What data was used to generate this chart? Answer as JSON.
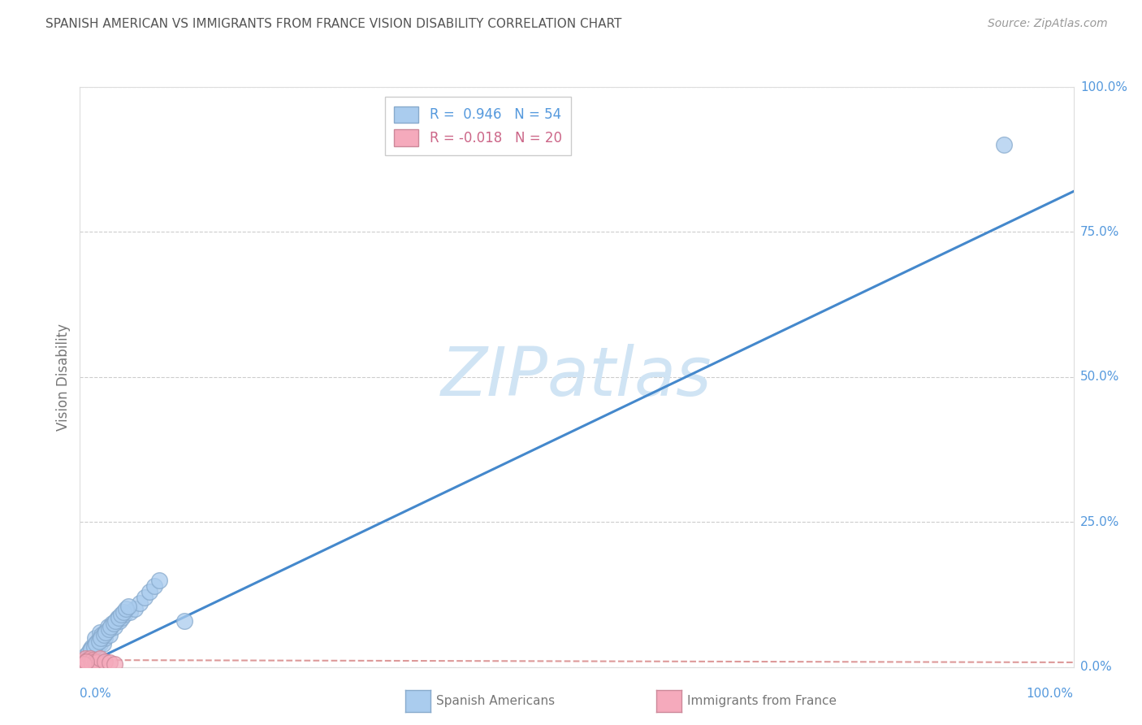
{
  "title": "SPANISH AMERICAN VS IMMIGRANTS FROM FRANCE VISION DISABILITY CORRELATION CHART",
  "source": "Source: ZipAtlas.com",
  "ylabel": "Vision Disability",
  "ytick_vals": [
    0,
    25,
    50,
    75,
    100
  ],
  "ytick_labels": [
    "0.0%",
    "25.0%",
    "50.0%",
    "75.0%",
    "100.0%"
  ],
  "xtick_left": "0.0%",
  "xtick_right": "100.0%",
  "legend_blue_label": "R =  0.946   N = 54",
  "legend_pink_label": "R = -0.018   N = 20",
  "scatter_blue_x": [
    0.5,
    0.8,
    1.0,
    1.0,
    1.2,
    1.3,
    1.5,
    1.5,
    1.5,
    1.7,
    1.8,
    2.0,
    2.0,
    2.0,
    2.2,
    2.3,
    2.5,
    2.5,
    2.8,
    3.0,
    3.0,
    3.2,
    3.5,
    3.8,
    4.0,
    4.2,
    4.5,
    5.0,
    5.5,
    6.0,
    6.5,
    7.0,
    7.5,
    8.0,
    0.6,
    0.9,
    1.1,
    1.4,
    1.6,
    1.9,
    2.1,
    2.4,
    2.6,
    2.9,
    3.1,
    3.4,
    3.6,
    3.9,
    4.1,
    4.4,
    4.6,
    4.9,
    93.0,
    10.5
  ],
  "scatter_blue_y": [
    1.5,
    2.0,
    2.5,
    3.0,
    3.5,
    2.5,
    4.0,
    3.5,
    5.0,
    3.0,
    4.5,
    5.0,
    4.0,
    6.0,
    5.5,
    4.0,
    6.0,
    5.0,
    7.0,
    6.5,
    5.5,
    7.5,
    7.0,
    8.5,
    8.0,
    8.5,
    9.0,
    9.5,
    10.0,
    11.0,
    12.0,
    13.0,
    14.0,
    15.0,
    2.0,
    2.5,
    3.0,
    3.5,
    4.0,
    4.5,
    5.0,
    5.5,
    6.0,
    6.5,
    7.0,
    7.5,
    8.0,
    8.5,
    9.0,
    9.5,
    10.0,
    10.5,
    90.0,
    8.0
  ],
  "scatter_pink_x": [
    0.2,
    0.3,
    0.4,
    0.5,
    0.6,
    0.7,
    0.8,
    0.9,
    1.0,
    1.1,
    1.2,
    1.3,
    1.5,
    1.7,
    2.0,
    2.5,
    3.0,
    3.5,
    0.4,
    0.6
  ],
  "scatter_pink_y": [
    0.5,
    1.0,
    0.8,
    1.5,
    1.0,
    0.5,
    1.2,
    0.8,
    1.5,
    1.0,
    0.5,
    1.2,
    1.0,
    0.8,
    1.5,
    1.0,
    0.8,
    0.5,
    0.5,
    1.0
  ],
  "blue_line_x0": 0,
  "blue_line_y0": 0,
  "blue_line_x1": 100,
  "blue_line_y1": 82,
  "pink_line_x0": 0,
  "pink_line_y0": 1.2,
  "pink_line_x1": 100,
  "pink_line_y1": 0.8,
  "scatter_blue_color": "#aaccee",
  "scatter_blue_edge": "#88aacc",
  "scatter_pink_color": "#f5aabc",
  "scatter_pink_edge": "#cc8899",
  "line_blue_color": "#4488cc",
  "line_pink_color": "#dd9999",
  "background_color": "#ffffff",
  "grid_color": "#cccccc",
  "title_color": "#555555",
  "axis_label_color": "#5599dd",
  "ylabel_color": "#777777",
  "source_color": "#999999",
  "bottom_label_color": "#777777",
  "watermark_color": "#d0e4f4",
  "watermark_text": "ZIPatlas",
  "xlim": [
    0,
    100
  ],
  "ylim": [
    0,
    100
  ],
  "figwidth": 14.06,
  "figheight": 8.92,
  "dpi": 100
}
